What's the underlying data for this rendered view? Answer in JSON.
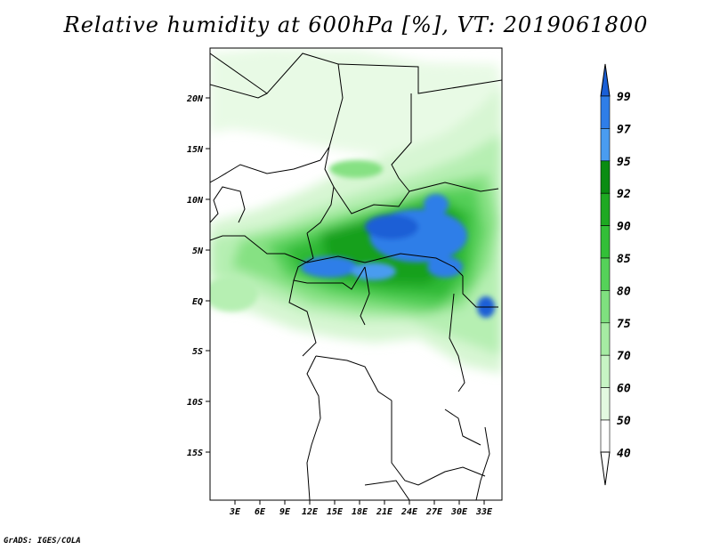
{
  "title": "Relative humidity at 600hPa [%], VT: 2019061800",
  "footer": "GrADS: IGES/COLA",
  "map": {
    "lat_labels": [
      "20N",
      "15N",
      "10N",
      "5N",
      "EQ",
      "5S",
      "10S",
      "15S"
    ],
    "lon_labels": [
      "3E",
      "6E",
      "9E",
      "12E",
      "15E",
      "18E",
      "21E",
      "24E",
      "27E",
      "30E",
      "33E"
    ]
  },
  "colorbar": {
    "labels": [
      "99",
      "97",
      "95",
      "92",
      "90",
      "85",
      "80",
      "75",
      "70",
      "60",
      "50",
      "40"
    ],
    "colors": [
      "#1a5fd6",
      "#2f7ee8",
      "#4a9cf0",
      "#0a8c12",
      "#1ea922",
      "#33bf38",
      "#55d259",
      "#7fe07f",
      "#a6eba3",
      "#c7f4c4",
      "#e3f9e0",
      "#ffffff"
    ]
  }
}
